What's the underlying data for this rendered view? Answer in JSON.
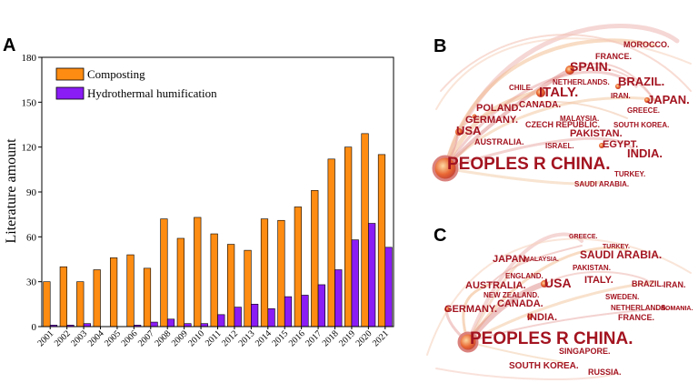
{
  "panels": {
    "a": "A",
    "b": "B",
    "c": "C"
  },
  "colors": {
    "composting": "#ff8c12",
    "hydrothermal": "#8a1cf5",
    "network_text": "#a31420"
  },
  "chart_data": {
    "type": "bar",
    "title": "",
    "xlabel": "",
    "ylabel": "Literature amount",
    "ylim": [
      0,
      180
    ],
    "yticks": [
      "0",
      "30",
      "60",
      "90",
      "120",
      "150",
      "180"
    ],
    "categories": [
      "2001",
      "2002",
      "2003",
      "2004",
      "2005",
      "2006",
      "2007",
      "2008",
      "2009",
      "2010",
      "2011",
      "2012",
      "2013",
      "2014",
      "2015",
      "2016",
      "2017",
      "2018",
      "2019",
      "2020",
      "2021"
    ],
    "legend_position": "top-left",
    "series": [
      {
        "name": "Composting",
        "values": [
          30,
          40,
          30,
          38,
          46,
          48,
          39,
          72,
          59,
          73,
          62,
          55,
          51,
          72,
          71,
          80,
          91,
          112,
          120,
          129,
          115
        ]
      },
      {
        "name": "Hydrothermal humification",
        "values": [
          1,
          1,
          2,
          0,
          0,
          1,
          3,
          5,
          2,
          2,
          8,
          13,
          15,
          12,
          20,
          21,
          28,
          38,
          58,
          69,
          53
        ]
      }
    ]
  },
  "network_b": {
    "countries": [
      {
        "name": "MOROCCO.",
        "weight": 1
      },
      {
        "name": "FRANCE.",
        "weight": 2
      },
      {
        "name": "SPAIN.",
        "weight": 3
      },
      {
        "name": "BRAZIL.",
        "weight": 3
      },
      {
        "name": "NETHERLANDS.",
        "weight": 1
      },
      {
        "name": "CHILE.",
        "weight": 1
      },
      {
        "name": "ITALY.",
        "weight": 4
      },
      {
        "name": "IRAN.",
        "weight": 1
      },
      {
        "name": "JAPAN.",
        "weight": 3
      },
      {
        "name": "POLAND.",
        "weight": 3
      },
      {
        "name": "CANADA.",
        "weight": 2
      },
      {
        "name": "GREECE.",
        "weight": 1
      },
      {
        "name": "GERMANY.",
        "weight": 3
      },
      {
        "name": "MALAYSIA.",
        "weight": 1
      },
      {
        "name": "CZECH REPUBLIC.",
        "weight": 1
      },
      {
        "name": "SOUTH KOREA.",
        "weight": 1
      },
      {
        "name": "USA",
        "weight": 4
      },
      {
        "name": "PAKISTAN.",
        "weight": 2
      },
      {
        "name": "AUSTRALIA.",
        "weight": 1
      },
      {
        "name": "ISRAEL.",
        "weight": 1
      },
      {
        "name": "EGYPT.",
        "weight": 2
      },
      {
        "name": "INDIA.",
        "weight": 3
      },
      {
        "name": "PEOPLES R CHINA.",
        "weight": 10
      },
      {
        "name": "TURKEY.",
        "weight": 1
      },
      {
        "name": "SAUDI ARABIA.",
        "weight": 1
      }
    ]
  },
  "network_c": {
    "countries": [
      {
        "name": "GREECE.",
        "weight": 1
      },
      {
        "name": "TURKEY.",
        "weight": 1
      },
      {
        "name": "SAUDI ARABIA.",
        "weight": 3
      },
      {
        "name": "JAPAN.",
        "weight": 3
      },
      {
        "name": "MALAYSIA.",
        "weight": 1
      },
      {
        "name": "PAKISTAN.",
        "weight": 1
      },
      {
        "name": "ENGLAND.",
        "weight": 1
      },
      {
        "name": "USA",
        "weight": 5
      },
      {
        "name": "ITALY.",
        "weight": 2
      },
      {
        "name": "BRAZIL.",
        "weight": 2
      },
      {
        "name": "IRAN.",
        "weight": 1
      },
      {
        "name": "AUSTRALIA.",
        "weight": 3
      },
      {
        "name": "NEW ZEALAND.",
        "weight": 1
      },
      {
        "name": "SWEDEN.",
        "weight": 1
      },
      {
        "name": "GERMANY.",
        "weight": 3
      },
      {
        "name": "CANADA.",
        "weight": 3
      },
      {
        "name": "NETHERLANDS.",
        "weight": 1
      },
      {
        "name": "ROMANIA.",
        "weight": 1
      },
      {
        "name": "INDIA.",
        "weight": 3
      },
      {
        "name": "FRANCE.",
        "weight": 2
      },
      {
        "name": "PEOPLES R CHINA.",
        "weight": 10
      },
      {
        "name": "SINGAPORE.",
        "weight": 1
      },
      {
        "name": "SOUTH KOREA.",
        "weight": 2
      },
      {
        "name": "RUSSIA.",
        "weight": 1
      }
    ]
  }
}
